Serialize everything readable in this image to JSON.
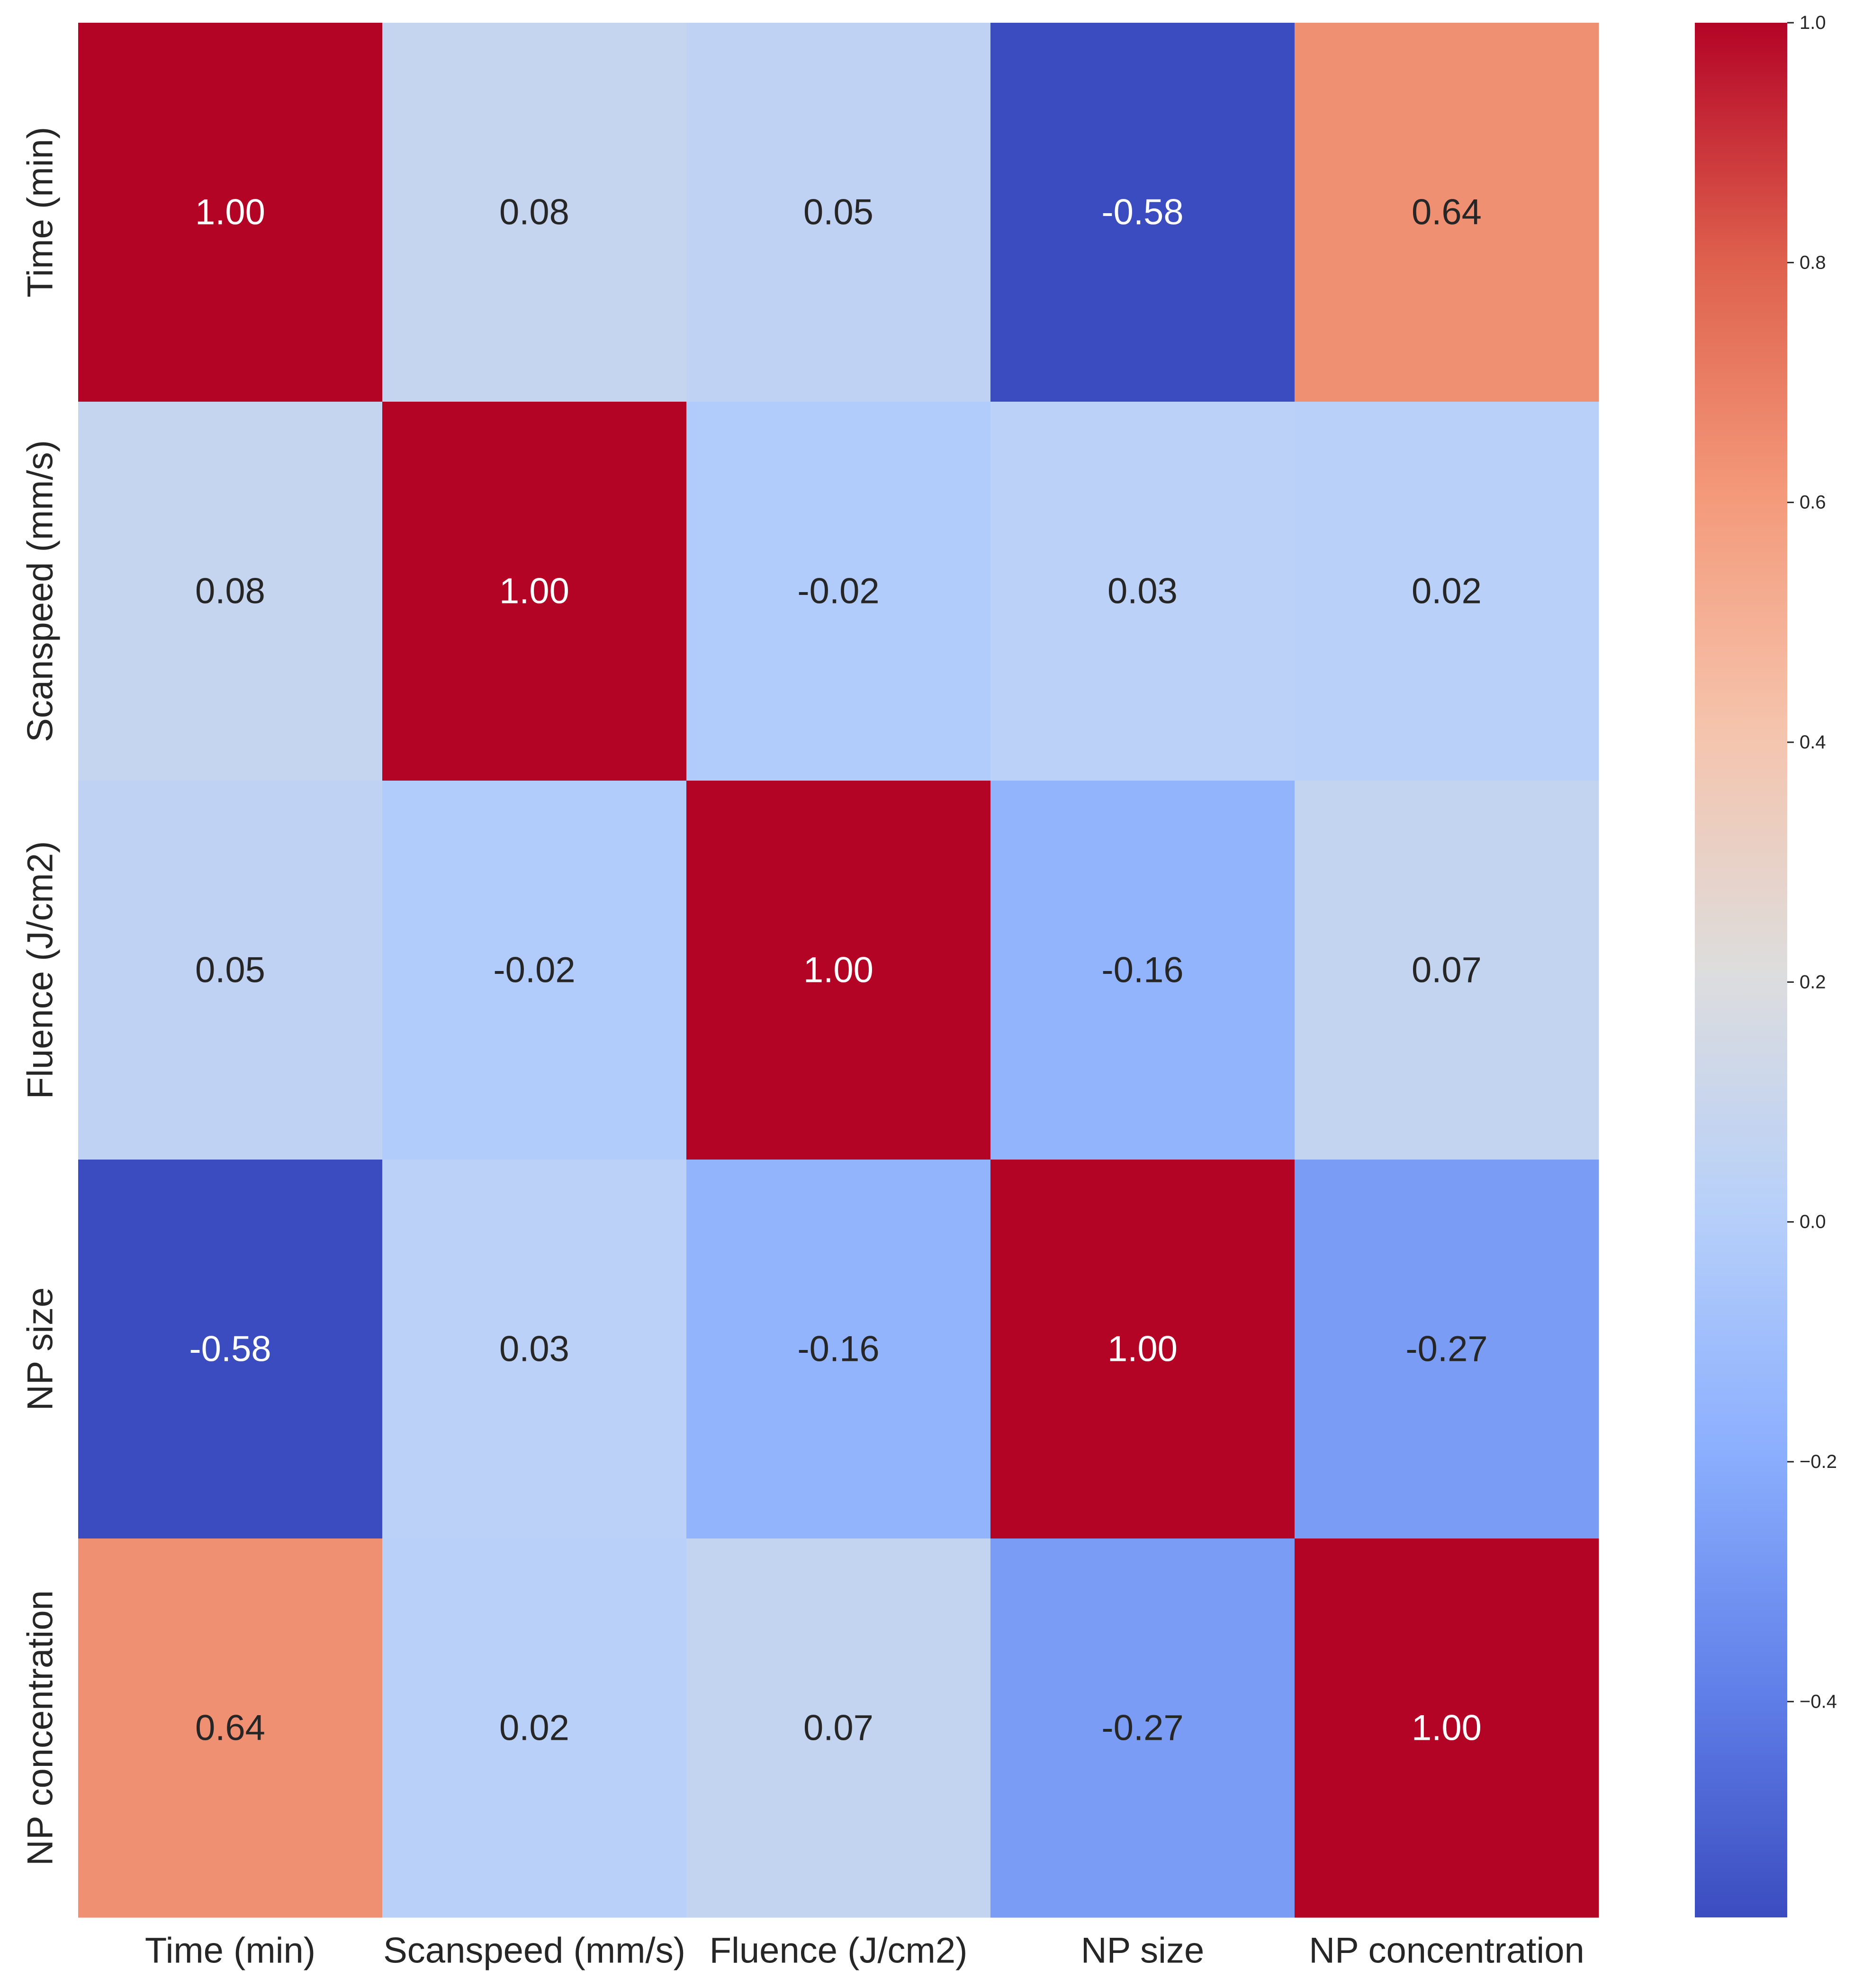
{
  "chart_data": {
    "type": "heatmap",
    "title": "",
    "xlabel": "",
    "ylabel": "",
    "row_labels": [
      "Time (min)",
      "Scanspeed (mm/s)",
      "Fluence (J/cm2)",
      "NP size",
      "NP concentration"
    ],
    "col_labels": [
      "Time (min)",
      "Scanspeed (mm/s)",
      "Fluence (J/cm2)",
      "NP size",
      "NP concentration"
    ],
    "values": [
      [
        1.0,
        0.08,
        0.05,
        -0.58,
        0.64
      ],
      [
        0.08,
        1.0,
        -0.02,
        0.03,
        0.02
      ],
      [
        0.05,
        -0.02,
        1.0,
        -0.16,
        0.07
      ],
      [
        -0.58,
        0.03,
        -0.16,
        1.0,
        -0.27
      ],
      [
        0.64,
        0.02,
        0.07,
        -0.27,
        1.0
      ]
    ],
    "cell_text": [
      [
        "1.00",
        "0.08",
        "0.05",
        "-0.58",
        "0.64"
      ],
      [
        "0.08",
        "1.00",
        "-0.02",
        "0.03",
        "0.02"
      ],
      [
        "0.05",
        "-0.02",
        "1.00",
        "-0.16",
        "0.07"
      ],
      [
        "-0.58",
        "0.03",
        "-0.16",
        "1.00",
        "-0.27"
      ],
      [
        "0.64",
        "0.02",
        "0.07",
        "-0.27",
        "1.00"
      ]
    ],
    "colormap": "coolwarm",
    "colorbar": {
      "range": [
        -0.58,
        1.0
      ],
      "ticks": [
        1.0,
        0.8,
        0.6,
        0.4,
        0.2,
        0.0,
        -0.2,
        -0.4
      ],
      "tick_labels": [
        "1.0",
        "0.8",
        "0.6",
        "0.4",
        "0.2",
        "0.0",
        "−0.2",
        "−0.4"
      ]
    },
    "colors": {
      "dark_text": "#262626",
      "light_text": "#ffffff",
      "axis_text": "#262626"
    }
  }
}
